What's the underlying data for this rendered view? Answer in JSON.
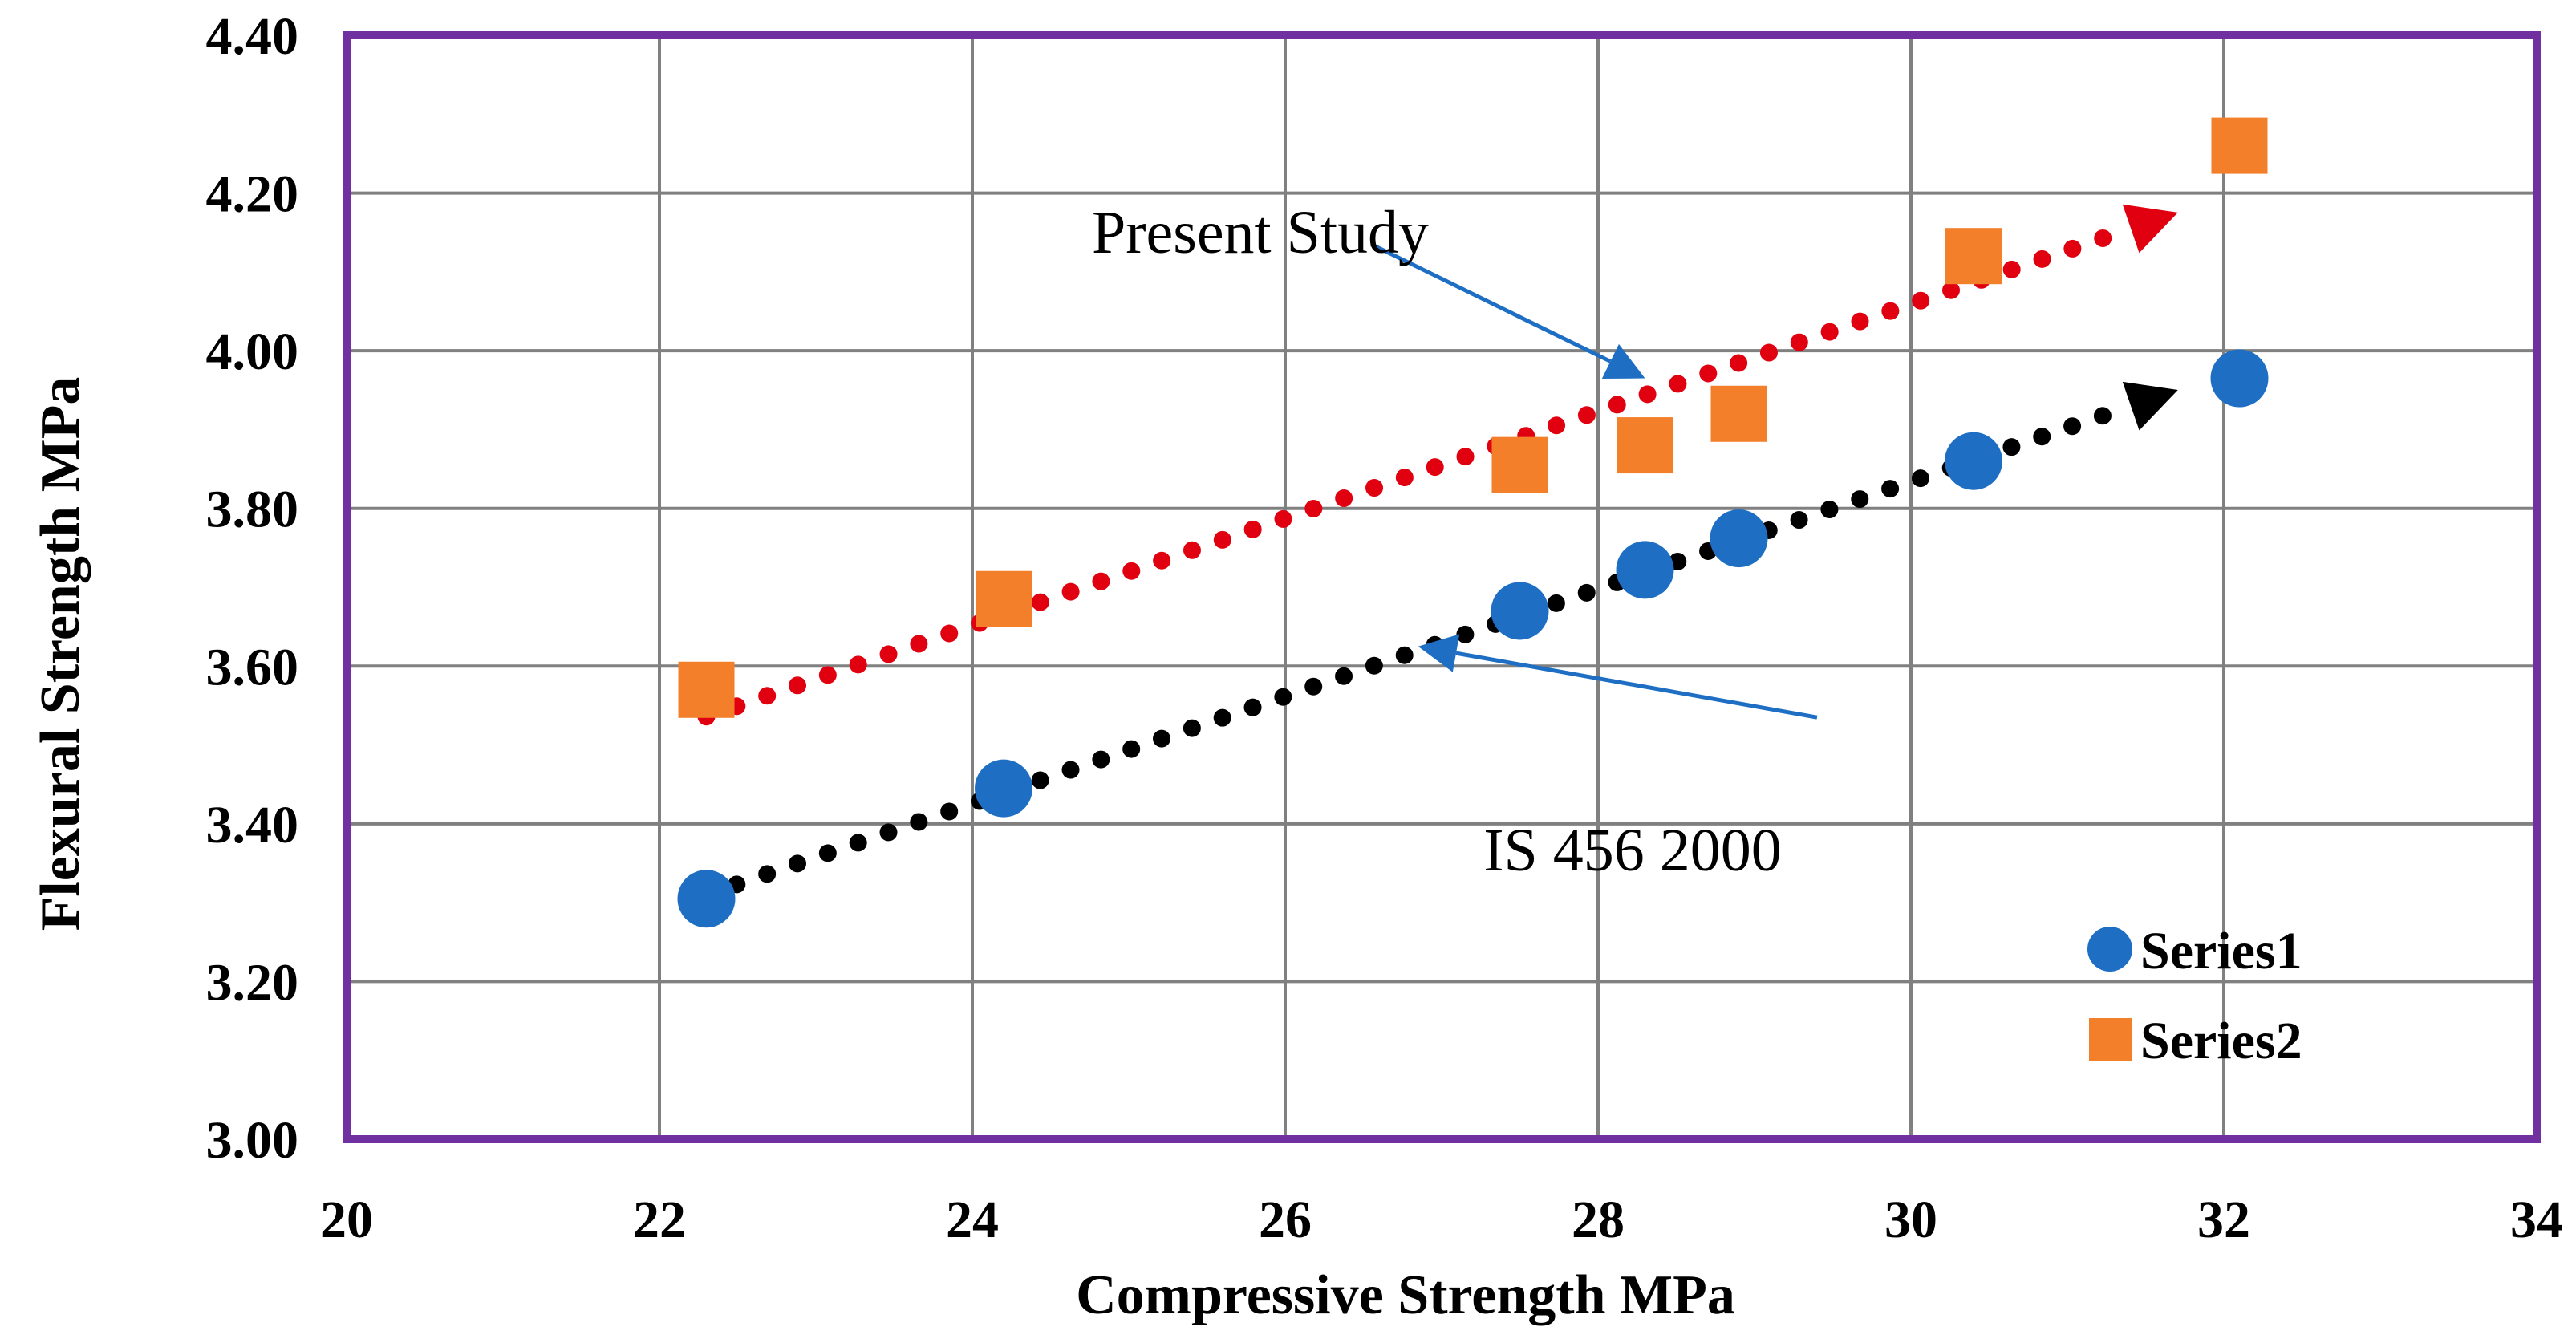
{
  "chart_data": {
    "type": "scatter",
    "xlabel": "Compressive Strength MPa",
    "ylabel": "Flexural Strength MPa",
    "xlim": [
      20,
      34
    ],
    "ylim": [
      3.0,
      4.4
    ],
    "x_ticks": [
      "20",
      "22",
      "24",
      "26",
      "28",
      "30",
      "32",
      "34"
    ],
    "y_ticks": [
      "3.00",
      "3.20",
      "3.40",
      "3.60",
      "3.80",
      "4.00",
      "4.20",
      "4.40"
    ],
    "grid": true,
    "legend_position": "bottom-right",
    "series": [
      {
        "name": "Series1",
        "marker": "circle",
        "color": "#1e6fc4",
        "x": [
          22.3,
          24.2,
          27.5,
          28.3,
          28.9,
          30.4,
          32.1
        ],
        "y": [
          3.305,
          3.445,
          3.67,
          3.722,
          3.762,
          3.86,
          3.965
        ],
        "trend": {
          "color": "#000000",
          "from": [
            22.3,
            3.31
          ],
          "to": [
            31.6,
            3.943
          ]
        }
      },
      {
        "name": "Series2",
        "marker": "square",
        "color": "#f37f2b",
        "x": [
          22.3,
          24.2,
          27.5,
          28.3,
          28.9,
          30.4,
          32.1
        ],
        "y": [
          3.57,
          3.685,
          3.855,
          3.88,
          3.92,
          4.12,
          4.26
        ],
        "trend": {
          "color": "#e0000f",
          "from": [
            22.3,
            3.536
          ],
          "to": [
            31.6,
            4.168
          ]
        }
      }
    ],
    "annotations": [
      {
        "text": "Present Study",
        "arrow_color": "#1e6fc4",
        "arrow_from": [
          26.55,
          4.135
        ],
        "arrow_to": [
          28.3,
          3.965
        ]
      },
      {
        "text": "IS 456 2000",
        "arrow_color": "#1e6fc4",
        "arrow_from": [
          29.4,
          3.535
        ],
        "arrow_to": [
          26.85,
          3.625
        ]
      }
    ],
    "plot_border_color": "#7030a0",
    "grid_color": "#808080"
  }
}
